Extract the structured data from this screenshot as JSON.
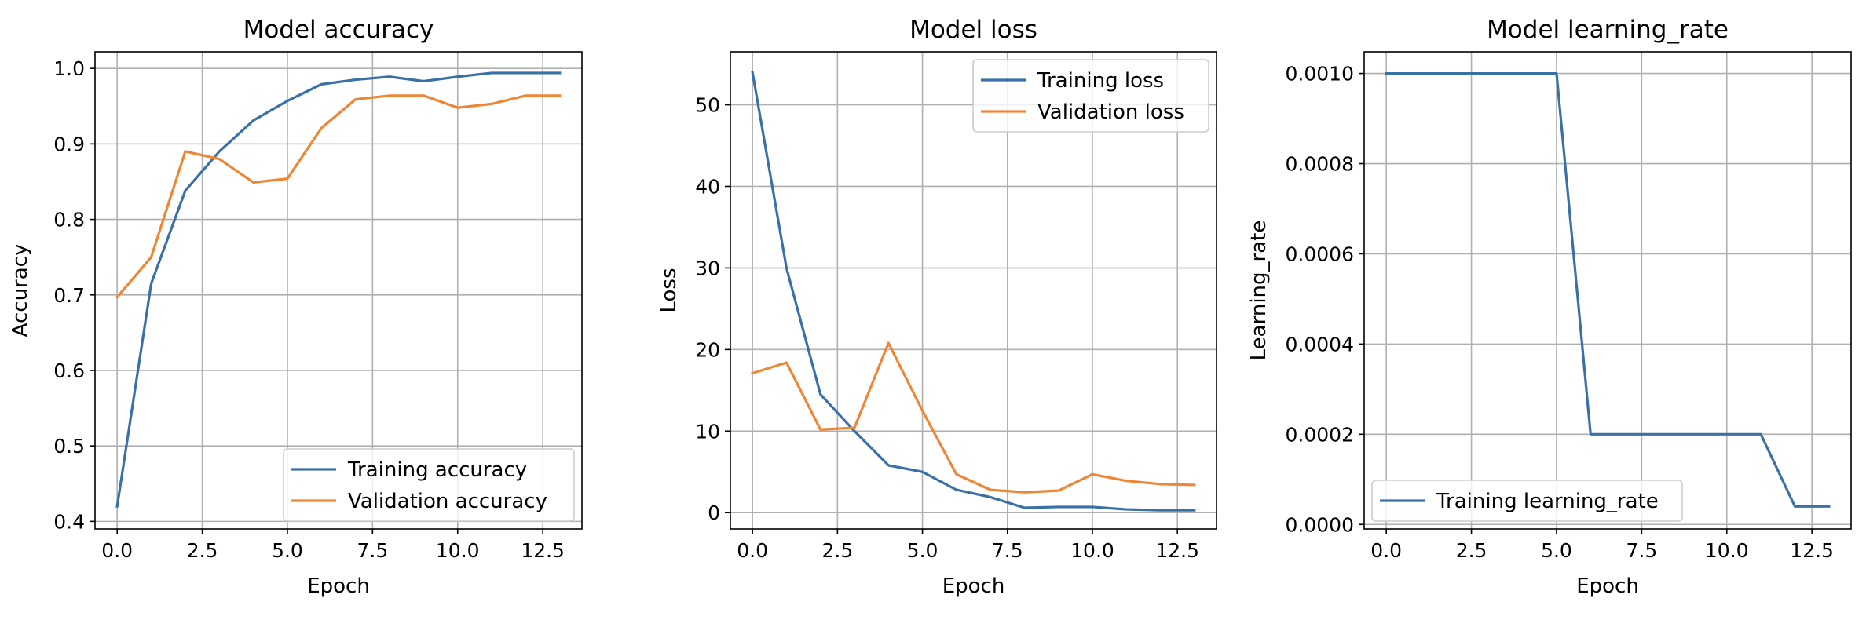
{
  "figure": {
    "colors": {
      "training": "#3a70a8",
      "validation": "#ef8636",
      "grid": "#b0b0b0",
      "axes": "#000000"
    }
  },
  "chart_data": [
    {
      "type": "line",
      "title": "Model accuracy",
      "xlabel": "Epoch",
      "ylabel": "Accuracy",
      "x": [
        0,
        1,
        2,
        3,
        4,
        5,
        6,
        7,
        8,
        9,
        10,
        11,
        12,
        13
      ],
      "xlim": [
        -0.65,
        13.65
      ],
      "ylim": [
        0.39,
        1.022
      ],
      "xticks": [
        0,
        2.5,
        5,
        7.5,
        10,
        12.5
      ],
      "xtick_labels": [
        "0.0",
        "2.5",
        "5.0",
        "7.5",
        "10.0",
        "12.5"
      ],
      "yticks": [
        0.4,
        0.5,
        0.6,
        0.7,
        0.8,
        0.9,
        1.0
      ],
      "ytick_labels": [
        "0.4",
        "0.5",
        "0.6",
        "0.7",
        "0.8",
        "0.9",
        "1.0"
      ],
      "grid": true,
      "legend_position": "lower-right",
      "series": [
        {
          "name": "Training accuracy",
          "color": "#3a70a8",
          "values": [
            0.42,
            0.715,
            0.838,
            0.89,
            0.931,
            0.957,
            0.979,
            0.985,
            0.989,
            0.983,
            0.989,
            0.994,
            0.994,
            0.994
          ]
        },
        {
          "name": "Validation accuracy",
          "color": "#ef8636",
          "values": [
            0.697,
            0.75,
            0.89,
            0.88,
            0.849,
            0.854,
            0.921,
            0.959,
            0.964,
            0.964,
            0.948,
            0.953,
            0.964,
            0.964
          ]
        }
      ]
    },
    {
      "type": "line",
      "title": "Model loss",
      "xlabel": "Epoch",
      "ylabel": "Loss",
      "x": [
        0,
        1,
        2,
        3,
        4,
        5,
        6,
        7,
        8,
        9,
        10,
        11,
        12,
        13
      ],
      "xlim": [
        -0.65,
        13.65
      ],
      "ylim": [
        -2.0,
        56.5
      ],
      "xticks": [
        0,
        2.5,
        5,
        7.5,
        10,
        12.5
      ],
      "xtick_labels": [
        "0.0",
        "2.5",
        "5.0",
        "7.5",
        "10.0",
        "12.5"
      ],
      "yticks": [
        0,
        10,
        20,
        30,
        40,
        50
      ],
      "ytick_labels": [
        "0",
        "10",
        "20",
        "30",
        "40",
        "50"
      ],
      "grid": true,
      "legend_position": "upper-right",
      "series": [
        {
          "name": "Training loss",
          "color": "#3a70a8",
          "values": [
            54.0,
            30.0,
            14.5,
            10.0,
            5.8,
            5.0,
            2.8,
            1.9,
            0.6,
            0.7,
            0.7,
            0.4,
            0.3,
            0.3
          ]
        },
        {
          "name": "Validation loss",
          "color": "#ef8636",
          "values": [
            17.1,
            18.4,
            10.2,
            10.4,
            20.8,
            12.5,
            4.7,
            2.8,
            2.5,
            2.7,
            4.7,
            3.9,
            3.5,
            3.4
          ]
        }
      ]
    },
    {
      "type": "line",
      "title": "Model learning_rate",
      "xlabel": "Epoch",
      "ylabel": "Learning_rate",
      "x": [
        0,
        1,
        2,
        3,
        4,
        5,
        6,
        7,
        8,
        9,
        10,
        11,
        12,
        13
      ],
      "xlim": [
        -0.65,
        13.65
      ],
      "ylim": [
        -1e-05,
        0.001048
      ],
      "xticks": [
        0,
        2.5,
        5,
        7.5,
        10,
        12.5
      ],
      "xtick_labels": [
        "0.0",
        "2.5",
        "5.0",
        "7.5",
        "10.0",
        "12.5"
      ],
      "yticks": [
        0,
        0.0002,
        0.0004,
        0.0006,
        0.0008,
        0.001
      ],
      "ytick_labels": [
        "0.0000",
        "0.0002",
        "0.0004",
        "0.0006",
        "0.0008",
        "0.0010"
      ],
      "grid": true,
      "legend_position": "lower-left",
      "series": [
        {
          "name": "Training learning_rate",
          "color": "#3a70a8",
          "values": [
            0.001,
            0.001,
            0.001,
            0.001,
            0.001,
            0.001,
            0.0002,
            0.0002,
            0.0002,
            0.0002,
            0.0002,
            0.0002,
            4e-05,
            4e-05
          ]
        }
      ]
    }
  ]
}
